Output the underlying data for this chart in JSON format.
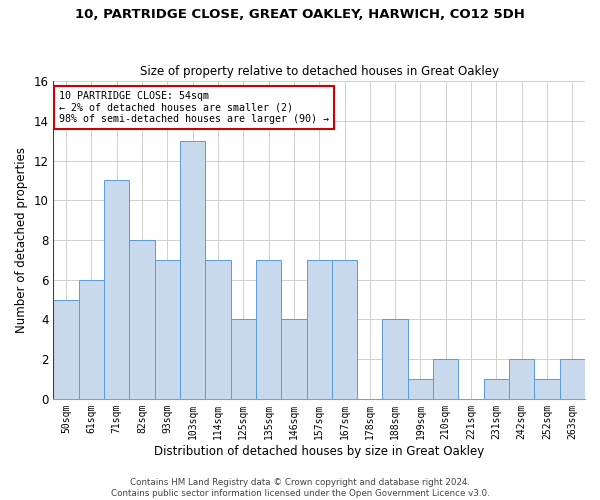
{
  "title1": "10, PARTRIDGE CLOSE, GREAT OAKLEY, HARWICH, CO12 5DH",
  "title2": "Size of property relative to detached houses in Great Oakley",
  "xlabel": "Distribution of detached houses by size in Great Oakley",
  "ylabel": "Number of detached properties",
  "bin_labels": [
    "50sqm",
    "61sqm",
    "71sqm",
    "82sqm",
    "93sqm",
    "103sqm",
    "114sqm",
    "125sqm",
    "135sqm",
    "146sqm",
    "157sqm",
    "167sqm",
    "178sqm",
    "188sqm",
    "199sqm",
    "210sqm",
    "221sqm",
    "231sqm",
    "242sqm",
    "252sqm",
    "263sqm"
  ],
  "bar_heights": [
    5,
    6,
    11,
    8,
    7,
    13,
    7,
    4,
    7,
    4,
    7,
    7,
    0,
    4,
    1,
    2,
    0,
    1,
    2,
    1,
    2
  ],
  "bar_color": "#c8d9ed",
  "bar_edge_color": "#5b9bd5",
  "grid_color": "#d0d0d0",
  "annotation_box_edge": "#cc0000",
  "annotation_line_color": "#cc0000",
  "annotation_text_line1": "10 PARTRIDGE CLOSE: 54sqm",
  "annotation_text_line2": "← 2% of detached houses are smaller (2)",
  "annotation_text_line3": "98% of semi-detached houses are larger (90) →",
  "ylim": [
    0,
    16
  ],
  "yticks": [
    0,
    2,
    4,
    6,
    8,
    10,
    12,
    14,
    16
  ],
  "footer1": "Contains HM Land Registry data © Crown copyright and database right 2024.",
  "footer2": "Contains public sector information licensed under the Open Government Licence v3.0."
}
